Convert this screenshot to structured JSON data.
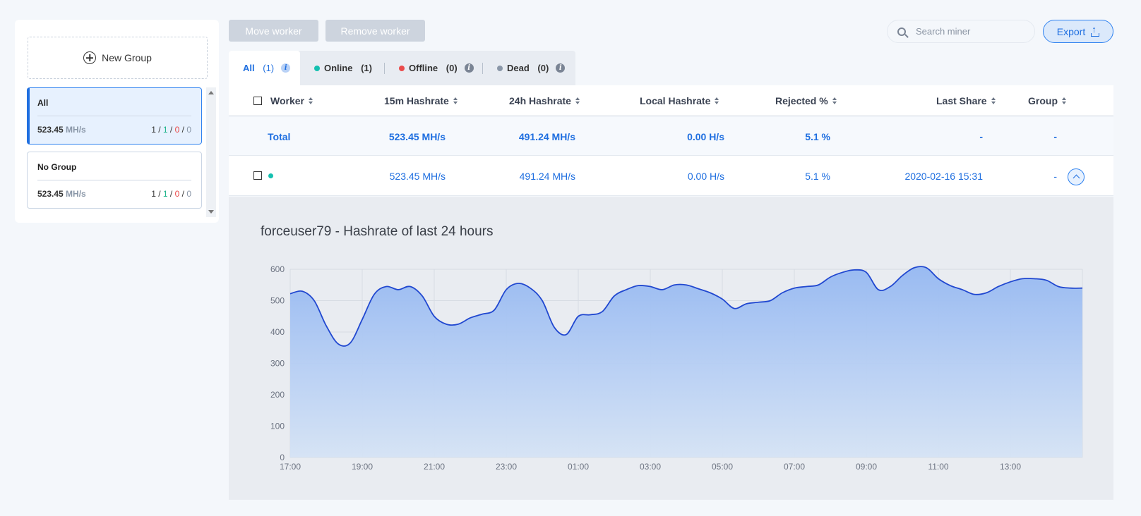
{
  "sidebar": {
    "new_group_label": "New Group",
    "groups": [
      {
        "name": "All",
        "hashrate": "523.45",
        "unit": "MH/s",
        "total": "1",
        "online": "1",
        "offline": "0",
        "dead": "0",
        "active": true
      },
      {
        "name": "No Group",
        "hashrate": "523.45",
        "unit": "MH/s",
        "total": "1",
        "online": "1",
        "offline": "0",
        "dead": "0",
        "active": false
      }
    ]
  },
  "toolbar": {
    "move_worker": "Move worker",
    "remove_worker": "Remove worker",
    "search_placeholder": "Search miner",
    "export_label": "Export"
  },
  "tabs": [
    {
      "label": "All",
      "count": "(1)",
      "active": true
    },
    {
      "label": "Online",
      "count": "(1)",
      "dot_color": "#14c0b0"
    },
    {
      "label": "Offline",
      "count": "(0)",
      "dot_color": "#ea4b4b"
    },
    {
      "label": "Dead",
      "count": "(0)",
      "dot_color": "#8a97a8"
    }
  ],
  "table": {
    "columns": [
      "Worker",
      "15m Hashrate",
      "24h Hashrate",
      "Local Hashrate",
      "Rejected %",
      "Last Share",
      "Group"
    ],
    "total_row": {
      "label": "Total",
      "h15m": "523.45 MH/s",
      "h24h": "491.24 MH/s",
      "local": "0.00 H/s",
      "rejected": "5.1 %",
      "last_share": "-",
      "group": "-"
    },
    "worker_row": {
      "name": "",
      "h15m": "523.45 MH/s",
      "h24h": "491.24 MH/s",
      "local": "0.00 H/s",
      "rejected": "5.1 %",
      "last_share": "2020-02-16 15:31",
      "group": "-"
    }
  },
  "colors": {
    "accent": "#1f6fe0",
    "online": "#14c0b0",
    "offline": "#ea4b4b",
    "dead": "#8a97a8",
    "line": "#2148d0"
  },
  "chart_data": {
    "type": "area",
    "title": "forceuser79 - Hashrate of last 24 hours",
    "x_ticks": [
      "17:00",
      "19:00",
      "21:00",
      "23:00",
      "01:00",
      "03:00",
      "05:00",
      "07:00",
      "09:00",
      "11:00",
      "13:00"
    ],
    "y_ticks": [
      0,
      100,
      200,
      300,
      400,
      500,
      600
    ],
    "ylim": [
      0,
      600
    ],
    "x": [
      "17:00",
      "17:20",
      "17:40",
      "18:00",
      "18:20",
      "18:40",
      "19:00",
      "19:20",
      "19:40",
      "20:00",
      "20:20",
      "20:40",
      "21:00",
      "21:20",
      "21:40",
      "22:00",
      "22:20",
      "22:40",
      "23:00",
      "23:20",
      "23:40",
      "00:00",
      "00:20",
      "00:40",
      "01:00",
      "01:20",
      "01:40",
      "02:00",
      "02:20",
      "02:40",
      "03:00",
      "03:20",
      "03:40",
      "04:00",
      "04:20",
      "04:40",
      "05:00",
      "05:20",
      "05:40",
      "06:00",
      "06:20",
      "06:40",
      "07:00",
      "07:20",
      "07:40",
      "08:00",
      "08:20",
      "08:40",
      "09:00",
      "09:20",
      "09:40",
      "10:00",
      "10:20",
      "10:40",
      "11:00",
      "11:20",
      "11:40",
      "12:00",
      "12:20",
      "12:40",
      "13:00",
      "13:20",
      "13:40",
      "14:00",
      "14:20",
      "14:40",
      "15:00"
    ],
    "values": [
      522,
      530,
      500,
      420,
      362,
      365,
      440,
      520,
      545,
      535,
      545,
      515,
      450,
      425,
      425,
      445,
      457,
      470,
      535,
      555,
      540,
      500,
      415,
      392,
      450,
      455,
      465,
      515,
      535,
      548,
      545,
      535,
      550,
      550,
      538,
      525,
      505,
      475,
      490,
      495,
      500,
      525,
      540,
      545,
      550,
      575,
      590,
      598,
      590,
      535,
      545,
      580,
      605,
      605,
      570,
      548,
      535,
      520,
      525,
      545,
      560,
      570,
      570,
      565,
      545,
      540,
      540
    ]
  }
}
